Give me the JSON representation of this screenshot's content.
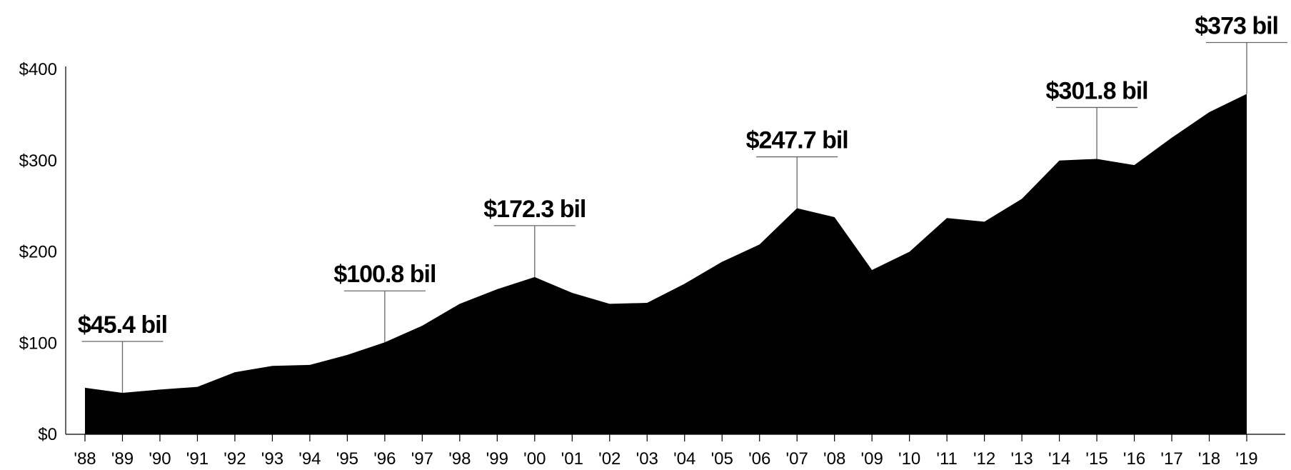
{
  "chart_data": {
    "type": "area",
    "title": "",
    "xlabel": "",
    "ylabel": "",
    "x": [
      "'88",
      "'89",
      "'90",
      "'91",
      "'92",
      "'93",
      "'94",
      "'95",
      "'96",
      "'97",
      "'98",
      "'99",
      "'00",
      "'01",
      "'02",
      "'03",
      "'04",
      "'05",
      "'06",
      "'07",
      "'08",
      "'09",
      "'10",
      "'11",
      "'12",
      "'13",
      "'14",
      "'15",
      "'16",
      "'17",
      "'18",
      "'19"
    ],
    "values": [
      51,
      45.4,
      49,
      52,
      68,
      75,
      76,
      87,
      100.8,
      119,
      143,
      159,
      172.3,
      155,
      143,
      144,
      165,
      189,
      208,
      247.7,
      238,
      180,
      200,
      237,
      233,
      258,
      300,
      301.8,
      295,
      325,
      353,
      373
    ],
    "ylim": [
      0,
      400
    ],
    "y_ticks": [
      {
        "value": 0,
        "label": "$0"
      },
      {
        "value": 100,
        "label": "$100"
      },
      {
        "value": 200,
        "label": "$200"
      },
      {
        "value": 300,
        "label": "$300"
      },
      {
        "value": 400,
        "label": "$400"
      }
    ],
    "fill_color": "#000000",
    "grid": false,
    "annotations": [
      {
        "index": 1,
        "label": "$45.4 bil"
      },
      {
        "index": 8,
        "label": "$100.8 bil"
      },
      {
        "index": 12,
        "label": "$172.3 bil"
      },
      {
        "index": 19,
        "label": "$247.7 bil"
      },
      {
        "index": 27,
        "label": "$301.8 bil"
      },
      {
        "index": 31,
        "label": "$373 bil"
      }
    ]
  }
}
